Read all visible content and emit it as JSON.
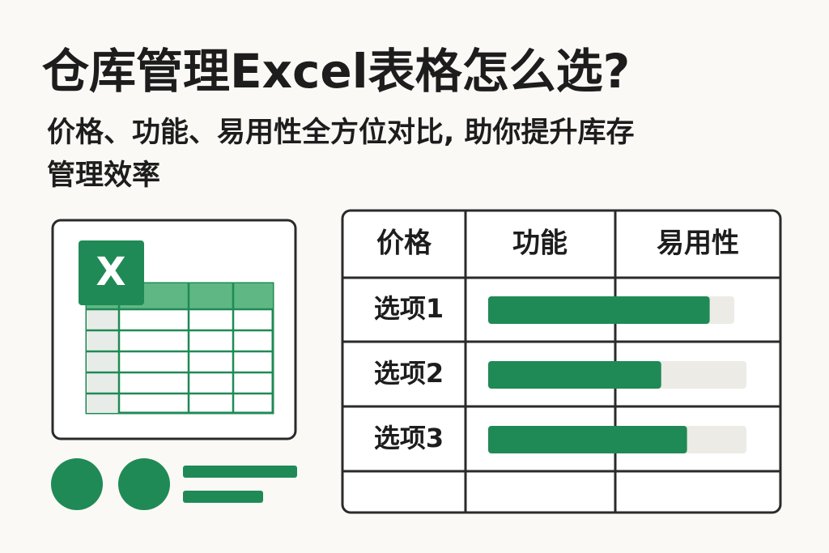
{
  "header": {
    "title": "仓库管理Excel表格怎么选?",
    "subtitle_lines": [
      "价格、功能、易用性全方位对比, 助你提升库存",
      "管理效率"
    ]
  },
  "icon": {
    "letter": "X"
  },
  "table": {
    "columns": [
      "价格",
      "功能",
      "易用性"
    ],
    "rows": [
      "选项1",
      "选项2",
      "选项3"
    ],
    "bar_values": [
      90,
      67,
      77
    ],
    "bar_xlim": [
      0,
      100
    ]
  }
}
